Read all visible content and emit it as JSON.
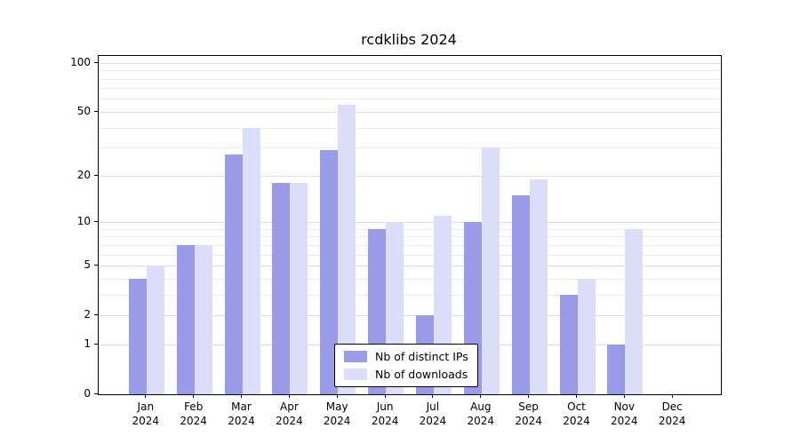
{
  "chart_data": {
    "type": "bar",
    "title": "rcdklibs 2024",
    "xlabel": "",
    "ylabel": "",
    "scale": "log1p",
    "grid": true,
    "legend_position": "lower center",
    "ylim": [
      0,
      110
    ],
    "y_ticks": [
      0,
      1,
      2,
      5,
      10,
      20,
      50,
      100
    ],
    "y_minor_gridlines": [
      3,
      4,
      6,
      7,
      8,
      9,
      30,
      40,
      60,
      70,
      80,
      90
    ],
    "categories": [
      "Jan 2024",
      "Feb 2024",
      "Mar 2024",
      "Apr 2024",
      "May 2024",
      "Jun 2024",
      "Jul 2024",
      "Aug 2024",
      "Sep 2024",
      "Oct 2024",
      "Nov 2024",
      "Dec 2024"
    ],
    "series": [
      {
        "name": "Nb of distinct IPs",
        "color": "#999be8",
        "values": [
          4,
          7,
          27,
          18,
          29,
          9,
          2,
          10,
          15,
          3,
          1,
          0
        ]
      },
      {
        "name": "Nb of downloads",
        "color": "#dcddf8",
        "values": [
          5,
          7,
          40,
          18,
          55,
          10,
          11,
          30,
          19,
          4,
          9,
          0
        ]
      }
    ]
  }
}
